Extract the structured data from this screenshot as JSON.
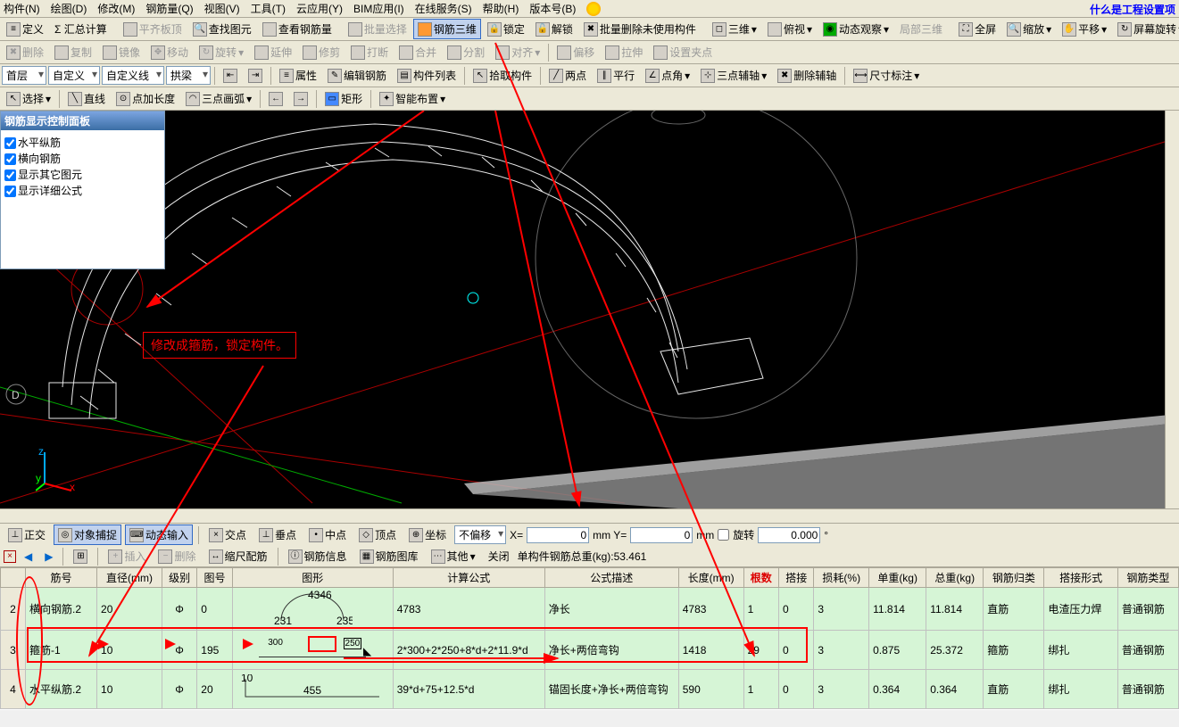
{
  "top_right_hint": "什么是工程设置项",
  "menubar": [
    "构件(N)",
    "绘图(D)",
    "修改(M)",
    "钢筋量(Q)",
    "视图(V)",
    "工具(T)",
    "云应用(Y)",
    "BIM应用(I)",
    "在线服务(S)",
    "帮助(H)",
    "版本号(B)"
  ],
  "tb1": {
    "define": "定义",
    "sum": "Σ 汇总计算",
    "flatten": "平齐板顶",
    "findElem": "查找图元",
    "viewRebar": "查看钢筋量",
    "batchSel": "批量选择",
    "rebar3d": "钢筋三维",
    "lock": "锁定",
    "unlock": "解锁",
    "delUnused": "批量删除未使用构件",
    "threeD": "三维",
    "topview": "俯视",
    "dyn": "动态观察",
    "local3d": "局部三维",
    "full": "全屏",
    "zoom": "缩放",
    "pan": "平移",
    "screenRot": "屏幕旋转"
  },
  "tb2": {
    "del": "删除",
    "copy": "复制",
    "mirror": "镜像",
    "move": "移动",
    "rotate": "旋转",
    "extend": "延伸",
    "trim": "修剪",
    "break": "打断",
    "merge": "合并",
    "split": "分割",
    "align": "对齐",
    "offset": "偏移",
    "stretch": "拉伸",
    "grip": "设置夹点"
  },
  "tb3": {
    "floor": "首层",
    "custom": "自定义",
    "customLine": "自定义线",
    "beam": "拱梁",
    "attr": "属性",
    "editRebar": "编辑钢筋",
    "list": "构件列表",
    "pick": "拾取构件",
    "twopt": "两点",
    "parallel": "平行",
    "ptangle": "点角",
    "threeptaux": "三点辅轴",
    "delaux": "删除辅轴",
    "dim": "尺寸标注"
  },
  "tb4": {
    "select": "选择",
    "line": "直线",
    "ptlen": "点加长度",
    "threeArc": "三点画弧",
    "rect": "矩形",
    "smart": "智能布置"
  },
  "panel": {
    "title": "钢筋显示控制面板",
    "items": [
      "水平纵筋",
      "横向钢筋",
      "显示其它图元",
      "显示详细公式"
    ]
  },
  "annotation": "修改成箍筋，锁定构件。",
  "status": {
    "ortho": "正交",
    "snap": "对象捕捉",
    "dyninput": "动态输入",
    "cross": "交点",
    "perp": "垂点",
    "mid": "中点",
    "vertex": "顶点",
    "coord": "坐标",
    "nooffset": "不偏移",
    "x": "0",
    "y": "0",
    "rot": "旋转",
    "ang": "0.000"
  },
  "tabbar": {
    "insert": "插入",
    "delete": "删除",
    "scale": "缩尺配筋",
    "info": "钢筋信息",
    "lib": "钢筋图库",
    "other": "其他",
    "close": "关闭",
    "weight": "单构件钢筋总重(kg):53.461"
  },
  "grid": {
    "cols": [
      "",
      "筋号",
      "直径(mm)",
      "级别",
      "图号",
      "图形",
      "计算公式",
      "公式描述",
      "长度(mm)",
      "根数",
      "搭接",
      "损耗(%)",
      "单重(kg)",
      "总重(kg)",
      "钢筋归类",
      "搭接形式",
      "钢筋类型"
    ],
    "rows": [
      {
        "n": "2",
        "name": "横向钢筋.2",
        "dia": "20",
        "grade": "Φ",
        "code": "0",
        "formula": "4783",
        "desc": "净长",
        "len": "4783",
        "cnt": "1",
        "lap": "0",
        "loss": "3",
        "uw": "11.814",
        "tw": "11.814",
        "cat": "直筋",
        "lapType": "电渣压力焊",
        "type": "普通钢筋",
        "shape": "arc",
        "arcTop": "4346",
        "arcL": "231",
        "arcR": "235"
      },
      {
        "n": "3",
        "name": "箍筋-1",
        "dia": "10",
        "grade": "Φ",
        "code": "195",
        "formula": "2*300+2*250+8*d+2*11.9*d",
        "desc": "净长+两倍弯钩",
        "len": "1418",
        "cnt": "29",
        "lap": "0",
        "loss": "3",
        "uw": "0.875",
        "tw": "25.372",
        "cat": "箍筋",
        "lapType": "绑扎",
        "type": "普通钢筋",
        "shape": "stirrup",
        "sL": "300",
        "sR": "250"
      },
      {
        "n": "4",
        "name": "水平纵筋.2",
        "dia": "10",
        "grade": "Φ",
        "code": "20",
        "formula": "39*d+75+12.5*d",
        "desc": "锚固长度+净长+两倍弯钩",
        "len": "590",
        "cnt": "1",
        "lap": "0",
        "loss": "3",
        "uw": "0.364",
        "tw": "0.364",
        "cat": "直筋",
        "lapType": "绑扎",
        "type": "普通钢筋",
        "shape": "L",
        "lL": "10",
        "lB": "455"
      }
    ]
  }
}
